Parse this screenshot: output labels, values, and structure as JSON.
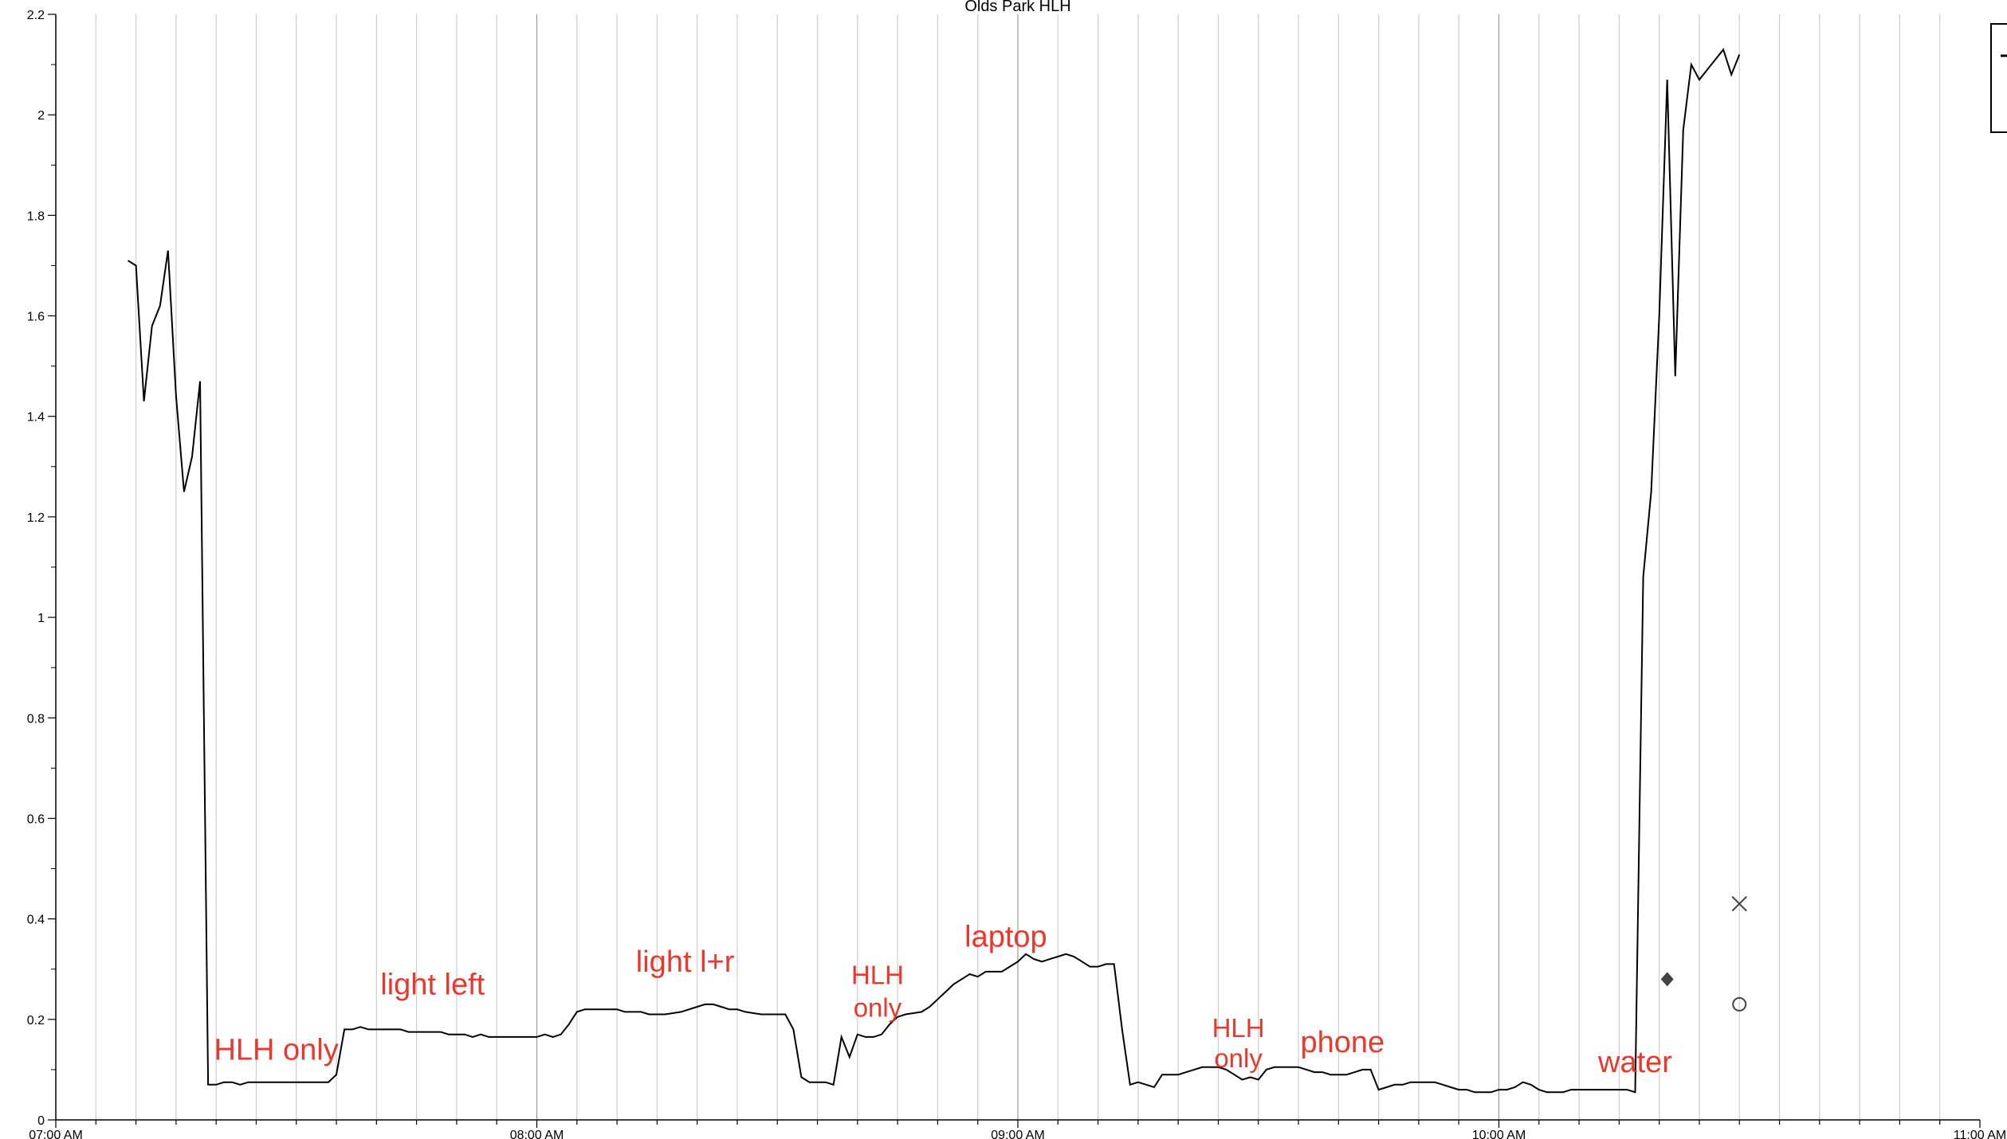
{
  "chart_data": {
    "type": "line",
    "title": "Olds Park HLH",
    "xlabel": "",
    "ylabel": "",
    "xlim_minutes": [
      0,
      240
    ],
    "ylim": [
      0,
      2.2
    ],
    "y_ticks": [
      "0",
      "0.2",
      "0.4",
      "0.6",
      "0.8",
      "1",
      "1.2",
      "1.4",
      "1.6",
      "1.8",
      "2",
      "2.2"
    ],
    "x_ticks": [
      "07:00 AM",
      "08:00 AM",
      "09:00 AM",
      "10:00 AM",
      "11:00 AM"
    ],
    "grid": "vertical every 5 minutes",
    "legend": "partially visible at top-right",
    "line_color": "#000000",
    "annotation_color": "#e8392c",
    "series": [
      {
        "points": [
          [
            9,
            1.71
          ],
          [
            10,
            1.7
          ],
          [
            11,
            1.43
          ],
          [
            12,
            1.58
          ],
          [
            13,
            1.62
          ],
          [
            14,
            1.73
          ],
          [
            15,
            1.44
          ],
          [
            16,
            1.25
          ],
          [
            17,
            1.32
          ],
          [
            18,
            1.47
          ],
          [
            19,
            0.07
          ],
          [
            20,
            0.07
          ],
          [
            21,
            0.075
          ],
          [
            22,
            0.075
          ],
          [
            23,
            0.07
          ],
          [
            24,
            0.075
          ],
          [
            26,
            0.075
          ],
          [
            28,
            0.075
          ],
          [
            30,
            0.075
          ],
          [
            32,
            0.075
          ],
          [
            34,
            0.075
          ],
          [
            35,
            0.09
          ],
          [
            36,
            0.18
          ],
          [
            37,
            0.18
          ],
          [
            38,
            0.185
          ],
          [
            39,
            0.18
          ],
          [
            41,
            0.18
          ],
          [
            43,
            0.18
          ],
          [
            44,
            0.175
          ],
          [
            46,
            0.175
          ],
          [
            48,
            0.175
          ],
          [
            49,
            0.17
          ],
          [
            51,
            0.17
          ],
          [
            52,
            0.165
          ],
          [
            53,
            0.17
          ],
          [
            54,
            0.165
          ],
          [
            56,
            0.165
          ],
          [
            58,
            0.165
          ],
          [
            60,
            0.165
          ],
          [
            61,
            0.17
          ],
          [
            62,
            0.165
          ],
          [
            63,
            0.17
          ],
          [
            64,
            0.19
          ],
          [
            65,
            0.215
          ],
          [
            66,
            0.22
          ],
          [
            68,
            0.22
          ],
          [
            70,
            0.22
          ],
          [
            71,
            0.215
          ],
          [
            73,
            0.215
          ],
          [
            74,
            0.21
          ],
          [
            76,
            0.21
          ],
          [
            78,
            0.215
          ],
          [
            80,
            0.225
          ],
          [
            81,
            0.23
          ],
          [
            82,
            0.23
          ],
          [
            83,
            0.225
          ],
          [
            84,
            0.22
          ],
          [
            85,
            0.22
          ],
          [
            86,
            0.215
          ],
          [
            88,
            0.21
          ],
          [
            90,
            0.21
          ],
          [
            91,
            0.21
          ],
          [
            92,
            0.18
          ],
          [
            93,
            0.085
          ],
          [
            94,
            0.075
          ],
          [
            95,
            0.075
          ],
          [
            96,
            0.075
          ],
          [
            97,
            0.07
          ],
          [
            98,
            0.165
          ],
          [
            99,
            0.125
          ],
          [
            100,
            0.17
          ],
          [
            101,
            0.165
          ],
          [
            102,
            0.165
          ],
          [
            103,
            0.17
          ],
          [
            104,
            0.19
          ],
          [
            105,
            0.205
          ],
          [
            106,
            0.21
          ],
          [
            108,
            0.215
          ],
          [
            109,
            0.225
          ],
          [
            110,
            0.24
          ],
          [
            111,
            0.255
          ],
          [
            112,
            0.27
          ],
          [
            113,
            0.28
          ],
          [
            114,
            0.29
          ],
          [
            115,
            0.285
          ],
          [
            116,
            0.295
          ],
          [
            118,
            0.295
          ],
          [
            119,
            0.305
          ],
          [
            120,
            0.315
          ],
          [
            121,
            0.33
          ],
          [
            122,
            0.32
          ],
          [
            123,
            0.315
          ],
          [
            124,
            0.32
          ],
          [
            125,
            0.325
          ],
          [
            126,
            0.33
          ],
          [
            127,
            0.325
          ],
          [
            128,
            0.315
          ],
          [
            129,
            0.305
          ],
          [
            130,
            0.305
          ],
          [
            131,
            0.31
          ],
          [
            132,
            0.31
          ],
          [
            133,
            0.18
          ],
          [
            134,
            0.07
          ],
          [
            135,
            0.075
          ],
          [
            136,
            0.07
          ],
          [
            137,
            0.065
          ],
          [
            138,
            0.09
          ],
          [
            139,
            0.09
          ],
          [
            140,
            0.09
          ],
          [
            141,
            0.095
          ],
          [
            142,
            0.1
          ],
          [
            143,
            0.105
          ],
          [
            145,
            0.105
          ],
          [
            146,
            0.1
          ],
          [
            147,
            0.09
          ],
          [
            148,
            0.08
          ],
          [
            149,
            0.085
          ],
          [
            150,
            0.08
          ],
          [
            151,
            0.1
          ],
          [
            152,
            0.105
          ],
          [
            153,
            0.105
          ],
          [
            155,
            0.105
          ],
          [
            156,
            0.1
          ],
          [
            157,
            0.095
          ],
          [
            158,
            0.095
          ],
          [
            159,
            0.09
          ],
          [
            160,
            0.09
          ],
          [
            161,
            0.09
          ],
          [
            162,
            0.095
          ],
          [
            163,
            0.1
          ],
          [
            164,
            0.1
          ],
          [
            165,
            0.06
          ],
          [
            166,
            0.065
          ],
          [
            167,
            0.07
          ],
          [
            168,
            0.07
          ],
          [
            169,
            0.075
          ],
          [
            170,
            0.075
          ],
          [
            172,
            0.075
          ],
          [
            173,
            0.07
          ],
          [
            174,
            0.065
          ],
          [
            175,
            0.06
          ],
          [
            176,
            0.06
          ],
          [
            177,
            0.055
          ],
          [
            178,
            0.055
          ],
          [
            179,
            0.055
          ],
          [
            180,
            0.06
          ],
          [
            181,
            0.06
          ],
          [
            182,
            0.065
          ],
          [
            183,
            0.075
          ],
          [
            184,
            0.07
          ],
          [
            185,
            0.06
          ],
          [
            186,
            0.055
          ],
          [
            187,
            0.055
          ],
          [
            188,
            0.055
          ],
          [
            189,
            0.06
          ],
          [
            190,
            0.06
          ],
          [
            191,
            0.06
          ],
          [
            192,
            0.06
          ],
          [
            194,
            0.06
          ],
          [
            196,
            0.06
          ],
          [
            197,
            0.055
          ],
          [
            198,
            1.08
          ],
          [
            199,
            1.25
          ],
          [
            200,
            1.6
          ],
          [
            201,
            2.07
          ],
          [
            202,
            1.48
          ],
          [
            203,
            1.97
          ],
          [
            204,
            2.1
          ],
          [
            205,
            2.07
          ],
          [
            206,
            2.09
          ],
          [
            207,
            2.11
          ],
          [
            208,
            2.13
          ],
          [
            209,
            2.08
          ],
          [
            210,
            2.12
          ]
        ]
      }
    ],
    "markers": [
      {
        "shape": "diamond",
        "x": 201,
        "y": 0.28
      },
      {
        "shape": "x",
        "x": 210,
        "y": 0.43
      },
      {
        "shape": "circle",
        "x": 210,
        "y": 0.23
      }
    ],
    "annotations": [
      {
        "text": "HLH only",
        "x": 27.5,
        "y": 0.12,
        "size": "normal"
      },
      {
        "text": "light left",
        "x": 47,
        "y": 0.25,
        "size": "normal"
      },
      {
        "text": "light l+r",
        "x": 78.5,
        "y": 0.295,
        "size": "normal"
      },
      {
        "text": "HLH",
        "x": 102.5,
        "y": 0.27,
        "size": "small"
      },
      {
        "text": "only",
        "x": 102.5,
        "y": 0.205,
        "size": "small"
      },
      {
        "text": "laptop",
        "x": 118.5,
        "y": 0.345,
        "size": "normal"
      },
      {
        "text": "HLH",
        "x": 147.5,
        "y": 0.165,
        "size": "small"
      },
      {
        "text": "only",
        "x": 147.5,
        "y": 0.105,
        "size": "small"
      },
      {
        "text": "phone",
        "x": 160.5,
        "y": 0.135,
        "size": "normal"
      },
      {
        "text": "water",
        "x": 197,
        "y": 0.095,
        "size": "normal"
      }
    ]
  }
}
